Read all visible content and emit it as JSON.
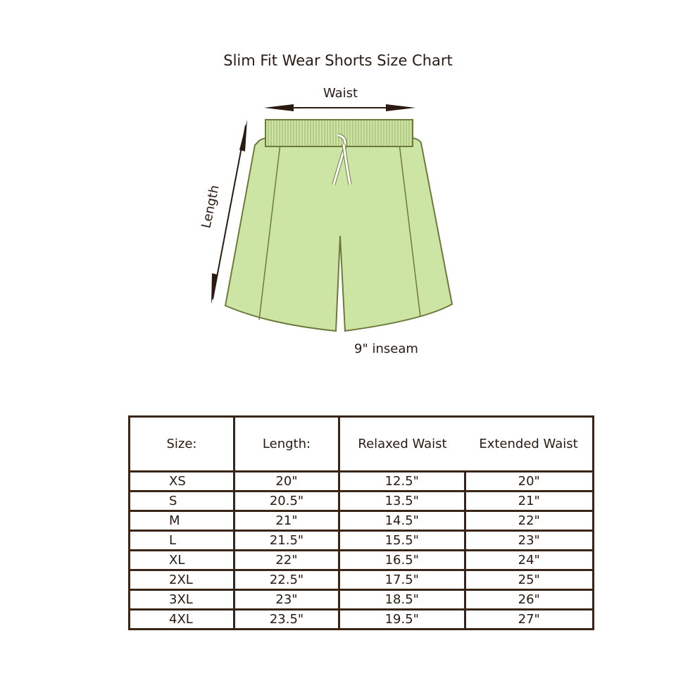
{
  "title": "Slim Fit Wear Shorts Size Chart",
  "diagram": {
    "waist_label": "Waist",
    "length_label": "Length",
    "inseam_label": "9\" inseam",
    "colors": {
      "fill": "#cde5a4",
      "stroke": "#6e7a3c",
      "arrow": "#2a1a10",
      "drawstring": "#ffffff"
    }
  },
  "table": {
    "headers": [
      "Size:",
      "Length:",
      "Relaxed Waist",
      "Extended Waist"
    ],
    "rows": [
      [
        "XS",
        "20\"",
        "12.5\"",
        "20\""
      ],
      [
        "S",
        "20.5\"",
        "13.5\"",
        "21\""
      ],
      [
        "M",
        "21\"",
        "14.5\"",
        "22\""
      ],
      [
        "L",
        "21.5\"",
        "15.5\"",
        "23\""
      ],
      [
        "XL",
        "22\"",
        "16.5\"",
        "24\""
      ],
      [
        "2XL",
        "22.5\"",
        "17.5\"",
        "25\""
      ],
      [
        "3XL",
        "23\"",
        "18.5\"",
        "26\""
      ],
      [
        "4XL",
        "23.5\"",
        "19.5\"",
        "27\""
      ]
    ],
    "border_color": "#3a2416"
  }
}
